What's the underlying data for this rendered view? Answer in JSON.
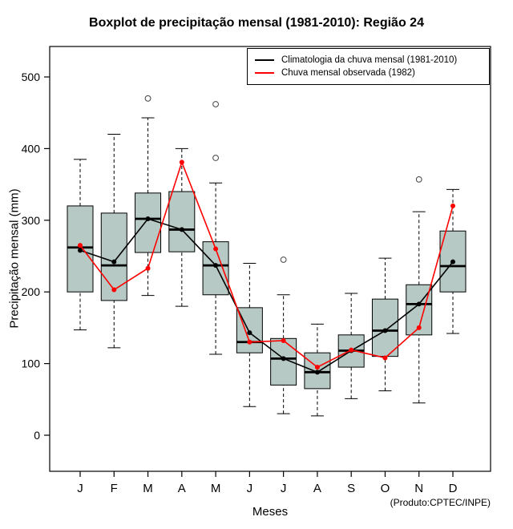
{
  "title": "Boxplot de precipitação mensal (1981-2010): Região 24",
  "footer_note": "(Produto:CPTEC/INPE)",
  "chart_data": {
    "type": "boxplot",
    "title": "Boxplot de precipitação mensal (1981-2010): Região 24",
    "xlabel": "Meses",
    "ylabel": "Precipitação mensal (mm)",
    "ylim": [
      0,
      500
    ],
    "yticks": [
      0,
      100,
      200,
      300,
      400,
      500
    ],
    "grid": false,
    "legend_position": "top-right",
    "box_fill": "#b7c9c4",
    "box_stroke": "#000000",
    "outlier_stroke": "#444444",
    "categories": [
      "J",
      "F",
      "M",
      "A",
      "M",
      "J",
      "J",
      "A",
      "S",
      "O",
      "N",
      "D"
    ],
    "boxes": [
      {
        "month": "J",
        "low": 147,
        "q1": 200,
        "median": 262,
        "q3": 320,
        "high": 385,
        "outliers": []
      },
      {
        "month": "F",
        "low": 122,
        "q1": 188,
        "median": 237,
        "q3": 310,
        "high": 420,
        "outliers": []
      },
      {
        "month": "M",
        "low": 195,
        "q1": 255,
        "median": 302,
        "q3": 338,
        "high": 443,
        "outliers": [
          470
        ]
      },
      {
        "month": "A",
        "low": 180,
        "q1": 256,
        "median": 287,
        "q3": 340,
        "high": 400,
        "outliers": []
      },
      {
        "month": "M",
        "low": 113,
        "q1": 196,
        "median": 237,
        "q3": 270,
        "high": 352,
        "outliers": [
          387,
          462
        ]
      },
      {
        "month": "J",
        "low": 40,
        "q1": 115,
        "median": 130,
        "q3": 178,
        "high": 240,
        "outliers": []
      },
      {
        "month": "J",
        "low": 30,
        "q1": 70,
        "median": 107,
        "q3": 135,
        "high": 196,
        "outliers": [
          245
        ]
      },
      {
        "month": "A",
        "low": 27,
        "q1": 65,
        "median": 88,
        "q3": 115,
        "high": 155,
        "outliers": []
      },
      {
        "month": "S",
        "low": 51,
        "q1": 95,
        "median": 118,
        "q3": 140,
        "high": 198,
        "outliers": []
      },
      {
        "month": "O",
        "low": 62,
        "q1": 110,
        "median": 146,
        "q3": 190,
        "high": 247,
        "outliers": []
      },
      {
        "month": "N",
        "low": 45,
        "q1": 140,
        "median": 183,
        "q3": 210,
        "high": 312,
        "outliers": [
          357
        ]
      },
      {
        "month": "D",
        "low": 142,
        "q1": 200,
        "median": 236,
        "q3": 285,
        "high": 343,
        "outliers": []
      }
    ],
    "series": [
      {
        "name": "Climatologia da chuva mensal (1981-2010)",
        "color": "#000000",
        "values": [
          258,
          242,
          302,
          287,
          237,
          143,
          107,
          88,
          118,
          146,
          183,
          242
        ]
      },
      {
        "name": "Chuva mensal observada (1982)",
        "color": "#ff0000",
        "values": [
          265,
          203,
          233,
          381,
          260,
          130,
          132,
          95,
          119,
          108,
          150,
          320
        ]
      }
    ]
  }
}
